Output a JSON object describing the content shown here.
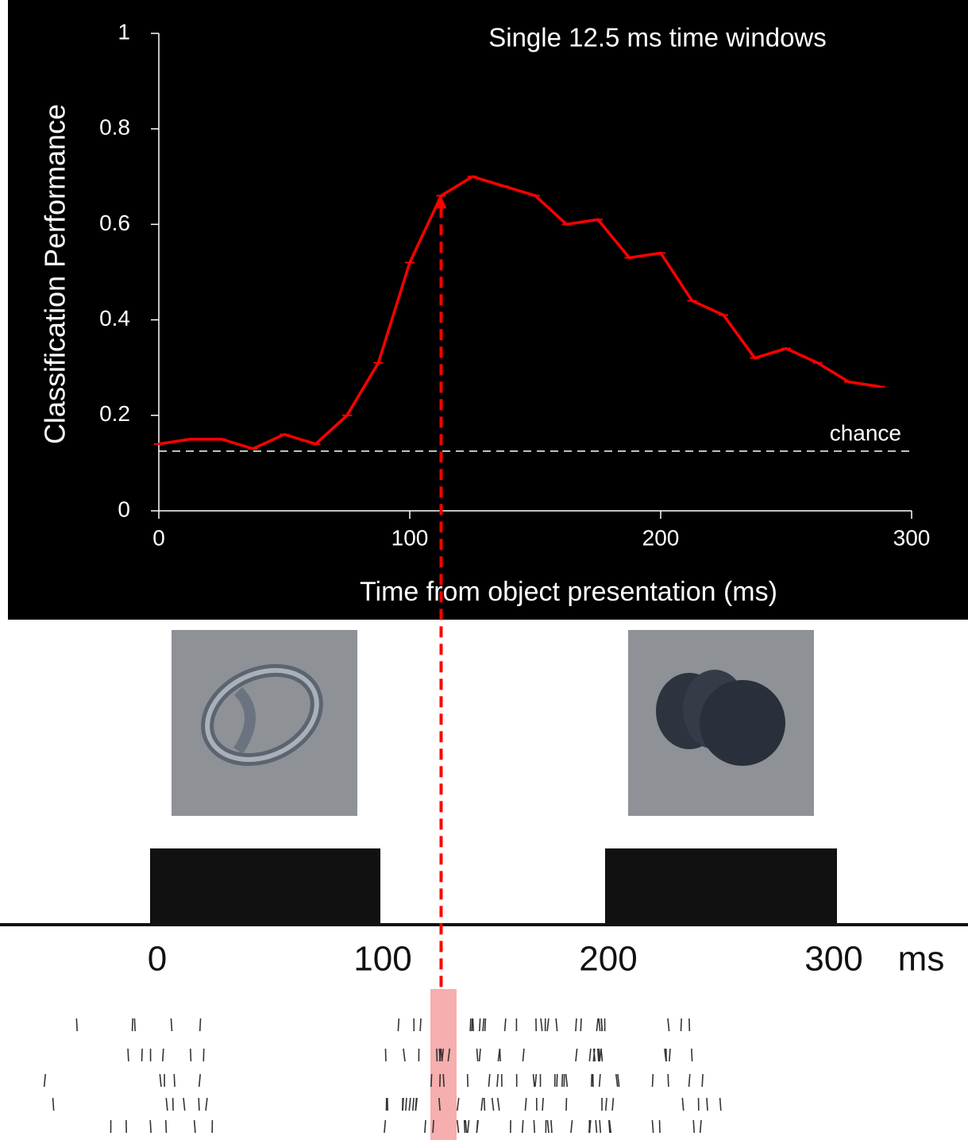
{
  "chart_data": {
    "type": "line",
    "title": "Single 12.5 ms time windows",
    "x_label": "Time from object presentation (ms)",
    "y_label": "Classification Performance",
    "x": [
      0,
      12.5,
      25,
      37.5,
      50,
      62.5,
      75,
      87.5,
      100,
      112.5,
      125,
      137.5,
      150,
      162.5,
      175,
      187.5,
      200,
      212.5,
      225,
      237.5,
      250,
      262.5,
      275,
      287.5
    ],
    "series": [
      {
        "color": "#ff0000",
        "values": [
          0.14,
          0.15,
          0.15,
          0.13,
          0.16,
          0.14,
          0.2,
          0.31,
          0.52,
          0.66,
          0.7,
          0.68,
          0.66,
          0.6,
          0.61,
          0.53,
          0.54,
          0.44,
          0.41,
          0.32,
          0.34,
          0.31,
          0.27,
          0.26
        ]
      }
    ],
    "xlim": [
      0,
      300
    ],
    "ylim": [
      0,
      1
    ],
    "xticks": [
      0,
      100,
      200,
      300
    ],
    "yticks": [
      0,
      0.2,
      0.4,
      0.6,
      0.8,
      1
    ],
    "chance": {
      "value": 0.125,
      "label": "chance"
    }
  },
  "timeline": {
    "ticks": [
      0,
      100,
      200,
      300
    ],
    "unit": "ms"
  }
}
